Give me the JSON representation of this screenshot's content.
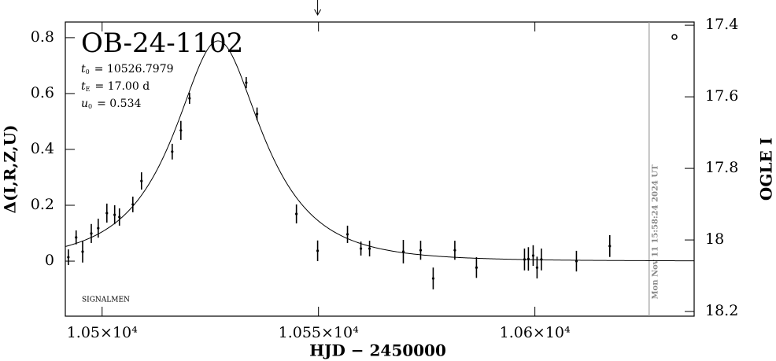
{
  "chart_data": {
    "type": "scatter",
    "title": "OB-24-1102",
    "xlabel": "HJD − 2450000",
    "ylabel": "Δ(I,R,Z,U)",
    "y2label": "OGLE I",
    "note": "SIGNALMEN",
    "timestamp": "Mon Nov 11 15:58:24 2024 UT",
    "model": [
      {
        "symbol": "t",
        "subscript": "0",
        "value": 10526.7979,
        "label": "= 10526.7979"
      },
      {
        "symbol": "t",
        "subscript": "E",
        "value": 17.0,
        "label": "= 17.00 d"
      },
      {
        "symbol": "u",
        "subscript": "0",
        "value": 0.534,
        "label": "= 0.534"
      }
    ],
    "x": [
      10492.2,
      10494.0,
      10495.5,
      10497.5,
      10499.1,
      10501.1,
      10502.9,
      10504.0,
      10507.1,
      10509.1,
      10516.2,
      10518.2,
      10520.2,
      10533.3,
      10535.8,
      10544.9,
      10549.8,
      10556.7,
      10559.8,
      10561.8,
      10569.6,
      10573.6,
      10576.5,
      10581.5,
      10586.5,
      10597.6,
      10598.5,
      10599.6,
      10600.5,
      10601.5,
      10609.6,
      10617.3
    ],
    "values": [
      0.014,
      0.085,
      0.034,
      0.099,
      0.118,
      0.172,
      0.166,
      0.158,
      0.203,
      0.287,
      0.392,
      0.468,
      0.583,
      0.639,
      0.527,
      0.169,
      0.037,
      0.096,
      0.045,
      0.045,
      0.034,
      0.039,
      -0.062,
      0.039,
      -0.023,
      0.006,
      0.008,
      0.02,
      -0.023,
      0.006,
      0,
      0.054
    ],
    "errors": [
      0.028,
      0.025,
      0.039,
      0.034,
      0.034,
      0.034,
      0.034,
      0.031,
      0.028,
      0.031,
      0.028,
      0.034,
      0.02,
      0.02,
      0.023,
      0.034,
      0.037,
      0.031,
      0.025,
      0.028,
      0.042,
      0.034,
      0.039,
      0.034,
      0.037,
      0.039,
      0.042,
      0.037,
      0.039,
      0.039,
      0.037,
      0.039
    ],
    "color": "#000000",
    "xlim": [
      10491.5,
      10636.8
    ],
    "xticks": [
      {
        "value": 10500,
        "label": "1.05×10⁴"
      },
      {
        "value": 10550,
        "label": "1.055×10⁴"
      },
      {
        "value": 10600,
        "label": "1.06×10⁴"
      }
    ],
    "ylim": [
      -0.197,
      0.856
    ],
    "yticks": [
      0,
      0.2,
      0.4,
      0.6,
      0.8
    ],
    "y2lim": [
      18.213,
      17.391
    ],
    "y2ticks": [
      17.4,
      17.6,
      17.8,
      18,
      18.2
    ],
    "timestamp_x": 10626.4,
    "arrow_x": 10549.8
  }
}
